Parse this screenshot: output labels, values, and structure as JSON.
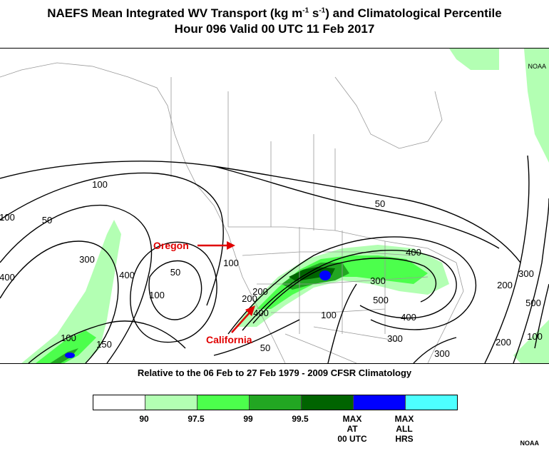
{
  "title": {
    "prefix": "NAEFS Mean Integrated WV Transport (kg m",
    "exp1": "-1",
    "mid": " s",
    "exp2": "-1",
    "suffix": ") and Climatological Percentile",
    "line2": "Hour 096 Valid 00 UTC 11 Feb 2017"
  },
  "annotations": {
    "oregon": "Oregon",
    "california": "California",
    "arrow_color": "#ff0000"
  },
  "contour_labels": [
    "100",
    "50",
    "100",
    "50",
    "400",
    "300",
    "400",
    "50",
    "100",
    "100",
    "200",
    "400",
    "300",
    "500",
    "400",
    "200",
    "300",
    "100",
    "200",
    "300",
    "500",
    "400",
    "200",
    "100",
    "50",
    "100",
    "300",
    "150"
  ],
  "climatology_note": "Relative to the 06 Feb to 27 Feb 1979 - 2009 CFSR Climatology",
  "colorbar": {
    "colors": [
      "#ffffff",
      "#b3ffb3",
      "#4cff4c",
      "#22a622",
      "#006400",
      "#0000ff",
      "#4dffff"
    ],
    "labels": [
      "90",
      "97.5",
      "99",
      "99.5",
      "MAX\nAT\n00 UTC",
      "MAX\nALL\nHRS"
    ]
  },
  "credit": "NOAA"
}
